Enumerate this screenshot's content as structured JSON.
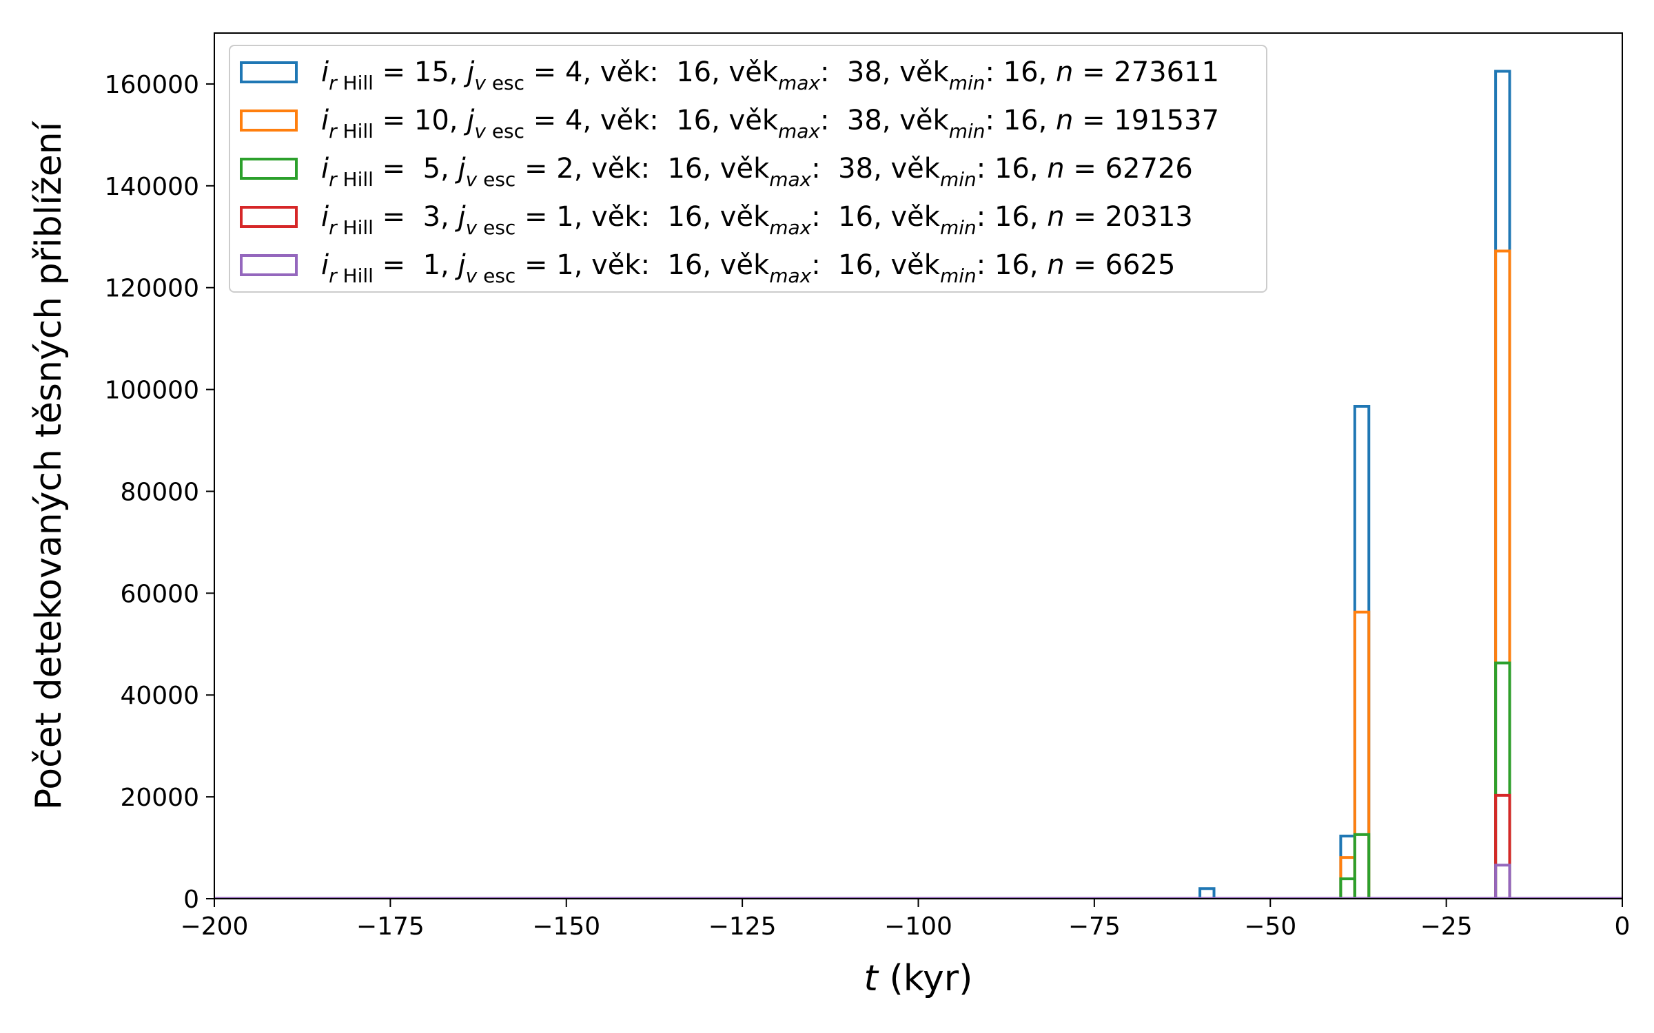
{
  "chart_data": {
    "type": "histogram",
    "xlabel_var": "t",
    "xlabel_unit": " (kyr)",
    "ylabel": "Počet detekovaných těsných přiblížení",
    "xlim": [
      -200,
      0
    ],
    "ylim": [
      0,
      170000
    ],
    "xticks": [
      -200,
      -175,
      -150,
      -125,
      -100,
      -75,
      -50,
      -25,
      0
    ],
    "xtick_labels": [
      "−200",
      "−175",
      "−150",
      "−125",
      "−100",
      "−75",
      "−50",
      "−25",
      "0"
    ],
    "yticks": [
      0,
      20000,
      40000,
      60000,
      80000,
      100000,
      120000,
      140000,
      160000
    ],
    "ytick_labels": [
      "0",
      "20000",
      "40000",
      "60000",
      "80000",
      "100000",
      "120000",
      "140000",
      "160000"
    ],
    "bin_width": 2,
    "grid": false,
    "legend_position": "upper-left",
    "series": [
      {
        "color": "#1f77b4",
        "legend": {
          "i": "15",
          "j": "4",
          "vek": "16",
          "vek_max": "38",
          "vek_min": "16",
          "n": "273611"
        },
        "bars": [
          {
            "x0": -60,
            "x1": -58,
            "value": 2000
          },
          {
            "x0": -40,
            "x1": -38,
            "value": 12300
          },
          {
            "x0": -38,
            "x1": -36,
            "value": 96700
          },
          {
            "x0": -18,
            "x1": -16,
            "value": 162500
          }
        ]
      },
      {
        "color": "#ff7f0e",
        "legend": {
          "i": "10",
          "j": "4",
          "vek": "16",
          "vek_max": "38",
          "vek_min": "16",
          "n": "191537"
        },
        "bars": [
          {
            "x0": -40,
            "x1": -38,
            "value": 8100
          },
          {
            "x0": -38,
            "x1": -36,
            "value": 56300
          },
          {
            "x0": -18,
            "x1": -16,
            "value": 127200
          }
        ]
      },
      {
        "color": "#2ca02c",
        "legend": {
          "i": " 5",
          "j": "2",
          "vek": "16",
          "vek_max": "38",
          "vek_min": "16",
          "n": "62726"
        },
        "bars": [
          {
            "x0": -40,
            "x1": -38,
            "value": 3900
          },
          {
            "x0": -38,
            "x1": -36,
            "value": 12600
          },
          {
            "x0": -18,
            "x1": -16,
            "value": 46300
          }
        ]
      },
      {
        "color": "#d62728",
        "legend": {
          "i": " 3",
          "j": "1",
          "vek": "16",
          "vek_max": "16",
          "vek_min": "16",
          "n": "20313"
        },
        "bars": [
          {
            "x0": -18,
            "x1": -16,
            "value": 20300
          }
        ]
      },
      {
        "color": "#9467bd",
        "legend": {
          "i": " 1",
          "j": "1",
          "vek": "16",
          "vek_max": "16",
          "vek_min": "16",
          "n": "6625"
        },
        "bars": [
          {
            "x0": -18,
            "x1": -16,
            "value": 6600
          }
        ]
      }
    ]
  }
}
